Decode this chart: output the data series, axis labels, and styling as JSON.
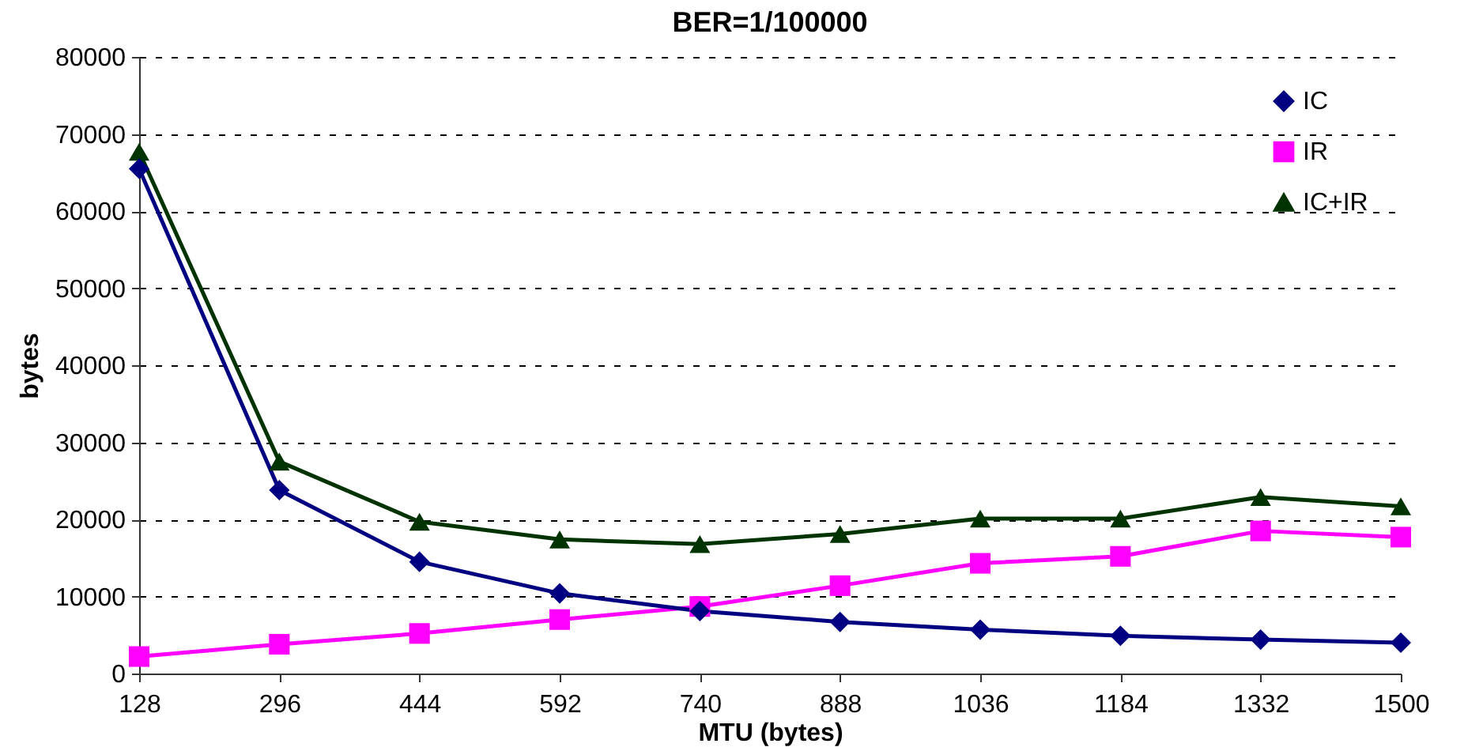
{
  "chart_data": {
    "type": "line",
    "title": "BER=1/100000",
    "xlabel": "MTU (bytes)",
    "ylabel": "bytes",
    "categories": [
      "128",
      "296",
      "444",
      "592",
      "740",
      "888",
      "1036",
      "1184",
      "1332",
      "1500"
    ],
    "series": [
      {
        "name": "IC",
        "color": "#000080",
        "marker": "diamond",
        "values": [
          65500,
          23800,
          14500,
          10400,
          8100,
          6700,
          5700,
          4900,
          4400,
          4000
        ]
      },
      {
        "name": "IR",
        "color": "#ff00ff",
        "marker": "square",
        "values": [
          2200,
          3800,
          5200,
          7000,
          8700,
          11400,
          14300,
          15200,
          18500,
          17700
        ]
      },
      {
        "name": "IC+IR",
        "color": "#003300",
        "marker": "triangle",
        "values": [
          67700,
          27500,
          19700,
          17400,
          16800,
          18100,
          20100,
          20100,
          22900,
          21700
        ]
      }
    ],
    "ylim": [
      0,
      80000
    ],
    "yticks": [
      0,
      10000,
      20000,
      30000,
      40000,
      50000,
      60000,
      70000,
      80000
    ],
    "grid": "y",
    "legend": "top right",
    "line_style": "solid"
  }
}
